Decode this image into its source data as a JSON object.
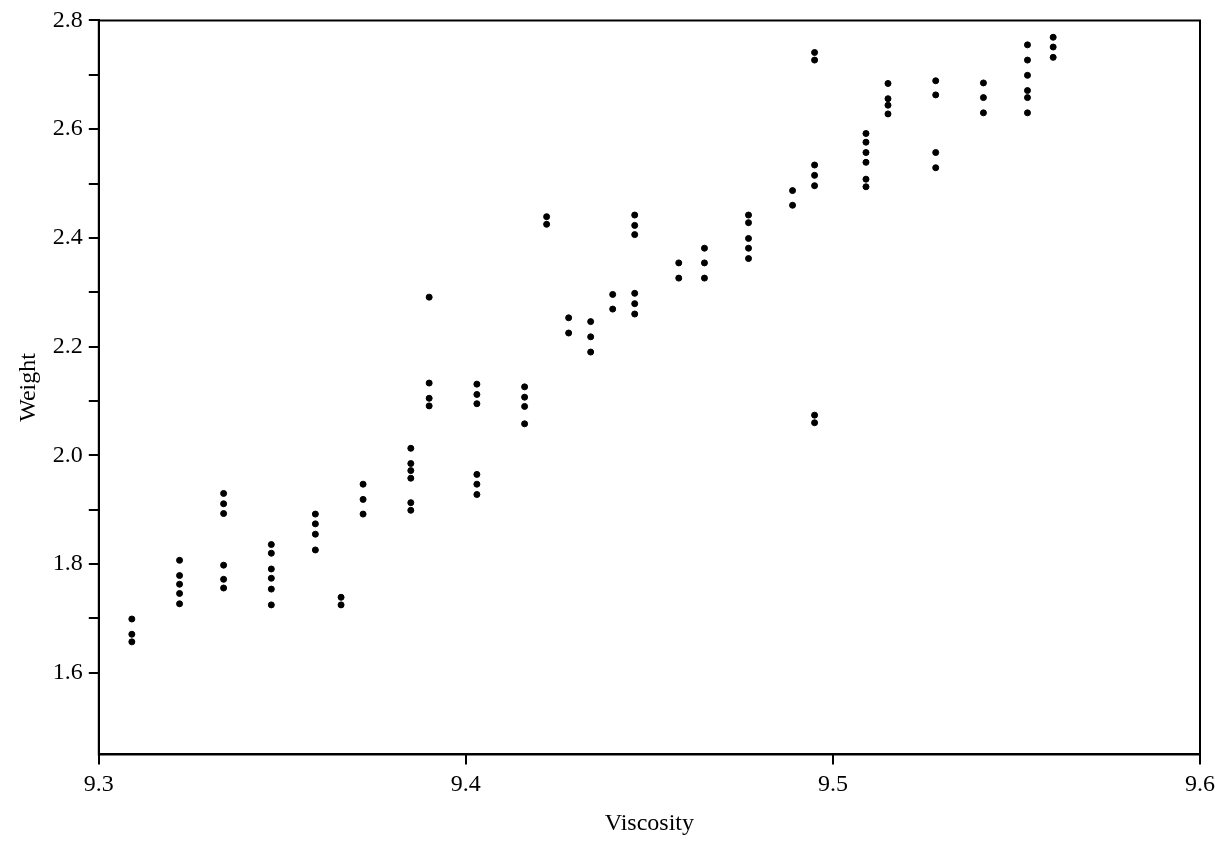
{
  "chart_data": {
    "type": "scatter",
    "xlabel": "Viscosity",
    "ylabel": "Weight",
    "marker": "circle",
    "grid": false,
    "legend": false,
    "xlim": [
      9.3,
      9.6
    ],
    "xticks": [
      9.3,
      9.4,
      9.5,
      9.6
    ],
    "ylim": [
      1.45,
      2.8
    ],
    "yticks": [
      {
        "value": 1.6,
        "label": "1.6"
      },
      {
        "value": 1.7,
        "label": null
      },
      {
        "value": 1.8,
        "label": "1.8"
      },
      {
        "value": 1.9,
        "label": null
      },
      {
        "value": 2.0,
        "label": "2.0"
      },
      {
        "value": 2.1,
        "label": null
      },
      {
        "value": 2.2,
        "label": "2.2"
      },
      {
        "value": 2.3,
        "label": null
      },
      {
        "value": 2.4,
        "label": "2.4"
      },
      {
        "value": 2.5,
        "label": null
      },
      {
        "value": 2.6,
        "label": "2.6"
      },
      {
        "value": 2.7,
        "label": null
      },
      {
        "value": 2.8,
        "label": "2.8"
      }
    ],
    "series": [
      {
        "color": "#000000",
        "x": [
          9.309,
          9.309,
          9.309,
          9.322,
          9.322,
          9.322,
          9.322,
          9.322,
          9.334,
          9.334,
          9.334,
          9.334,
          9.334,
          9.334,
          9.347,
          9.347,
          9.347,
          9.347,
          9.347,
          9.347,
          9.359,
          9.359,
          9.359,
          9.359,
          9.366,
          9.366,
          9.372,
          9.372,
          9.372,
          9.385,
          9.385,
          9.385,
          9.385,
          9.385,
          9.385,
          9.39,
          9.39,
          9.39,
          9.39,
          9.403,
          9.403,
          9.403,
          9.403,
          9.403,
          9.403,
          9.416,
          9.416,
          9.416,
          9.416,
          9.422,
          9.422,
          9.428,
          9.428,
          9.434,
          9.434,
          9.434,
          9.44,
          9.44,
          9.446,
          9.446,
          9.446,
          9.446,
          9.446,
          9.446,
          9.458,
          9.458,
          9.465,
          9.465,
          9.465,
          9.477,
          9.477,
          9.477,
          9.477,
          9.477,
          9.489,
          9.489,
          9.495,
          9.495,
          9.495,
          9.495,
          9.495,
          9.495,
          9.495,
          9.509,
          9.509,
          9.509,
          9.509,
          9.509,
          9.509,
          9.515,
          9.515,
          9.515,
          9.515,
          9.528,
          9.528,
          9.528,
          9.528,
          9.541,
          9.541,
          9.541,
          9.553,
          9.553,
          9.553,
          9.553,
          9.553,
          9.553,
          9.56,
          9.56,
          9.56
        ],
        "values": [
          1.699,
          1.671,
          1.657,
          1.807,
          1.779,
          1.763,
          1.746,
          1.727,
          1.93,
          1.911,
          1.893,
          1.798,
          1.772,
          1.756,
          1.836,
          1.82,
          1.791,
          1.774,
          1.754,
          1.725,
          1.892,
          1.874,
          1.855,
          1.826,
          1.739,
          1.725,
          1.947,
          1.919,
          1.892,
          2.013,
          1.985,
          1.972,
          1.958,
          1.913,
          1.899,
          2.291,
          2.133,
          2.105,
          2.091,
          2.131,
          2.112,
          2.095,
          1.965,
          1.947,
          1.928,
          2.126,
          2.107,
          2.09,
          2.058,
          2.439,
          2.425,
          2.253,
          2.225,
          2.246,
          2.218,
          2.19,
          2.296,
          2.269,
          2.442,
          2.423,
          2.406,
          2.298,
          2.279,
          2.26,
          2.354,
          2.326,
          2.381,
          2.354,
          2.326,
          2.442,
          2.428,
          2.399,
          2.381,
          2.362,
          2.487,
          2.46,
          2.741,
          2.727,
          2.534,
          2.515,
          2.496,
          2.074,
          2.06,
          2.592,
          2.576,
          2.557,
          2.539,
          2.508,
          2.494,
          2.684,
          2.656,
          2.644,
          2.628,
          2.689,
          2.663,
          2.557,
          2.529,
          2.685,
          2.658,
          2.63,
          2.755,
          2.727,
          2.699,
          2.671,
          2.658,
          2.63,
          2.769,
          2.751,
          2.732
        ]
      }
    ]
  }
}
